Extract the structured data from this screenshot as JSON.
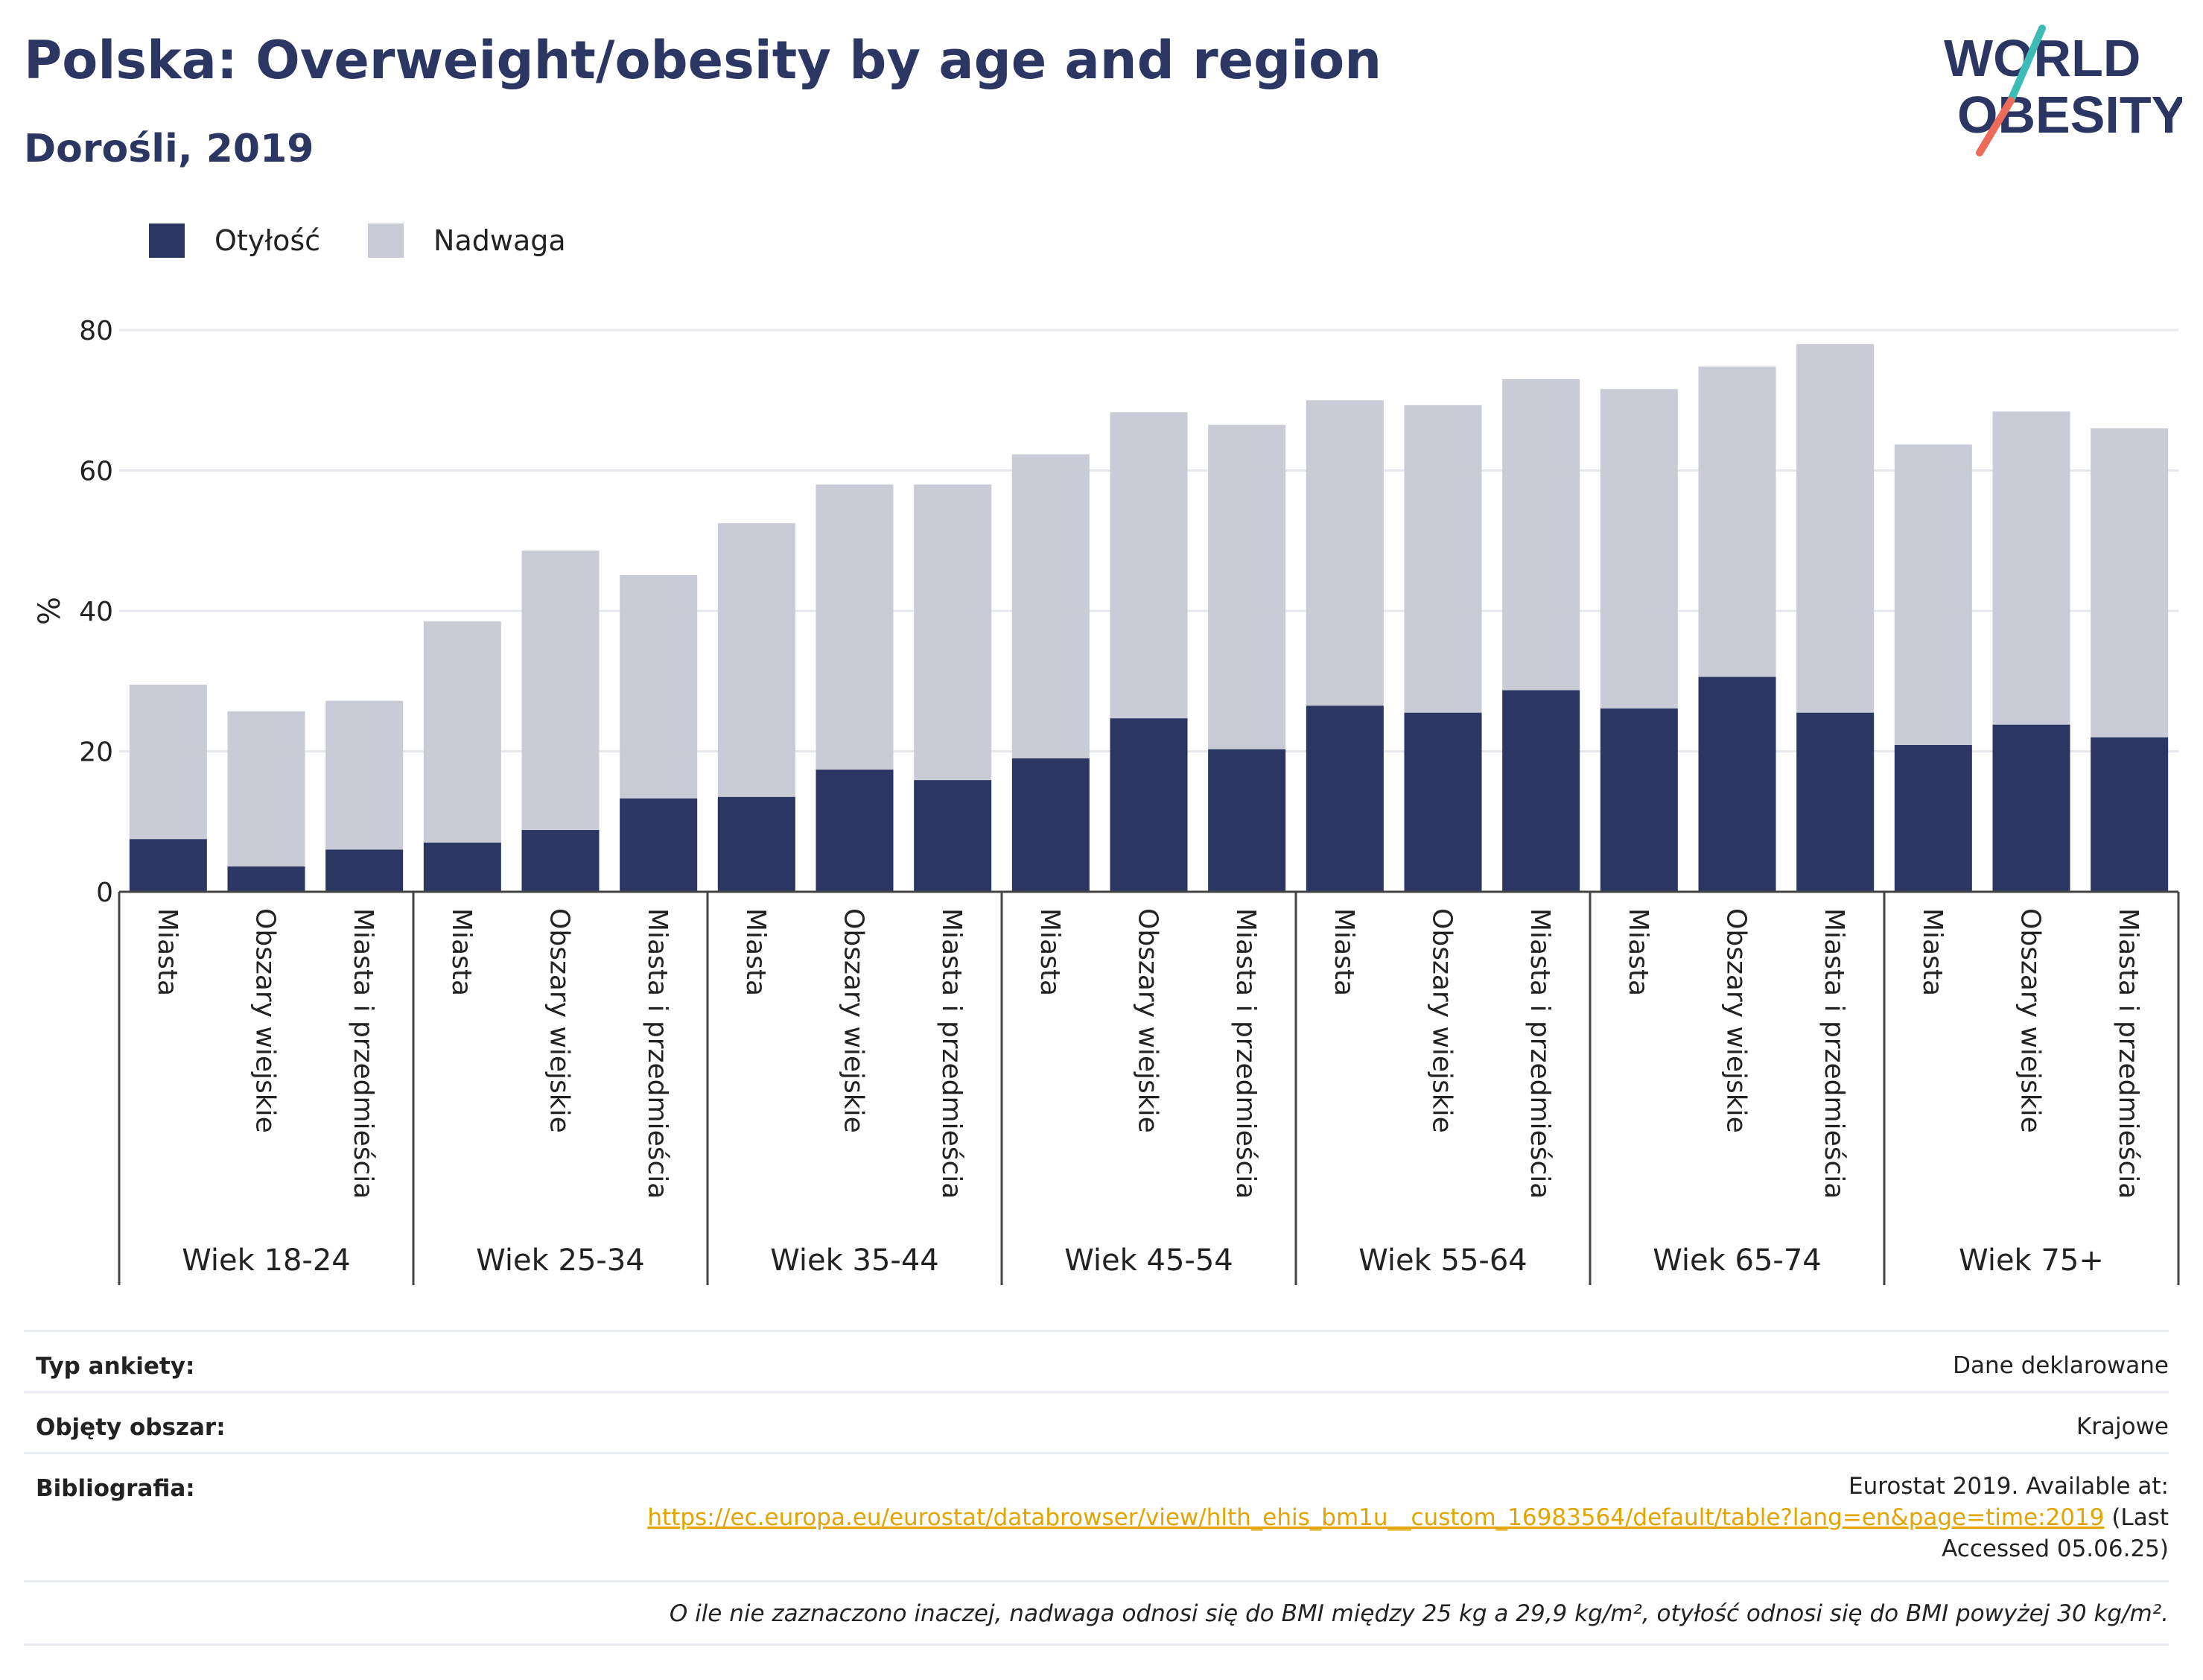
{
  "header": {
    "title": "Polska: Overweight/obesity by age and region",
    "subtitle": "Dorośli, 2019"
  },
  "logo": {
    "line1": "WORLD",
    "line2": "OBESITY"
  },
  "legend": [
    {
      "label": "Otyłość",
      "color": "#2b3663"
    },
    {
      "label": "Nadwaga",
      "color": "#c9cbd6"
    }
  ],
  "chart_data": {
    "type": "bar",
    "stacked": true,
    "ylabel": "%",
    "ylim": [
      0,
      80
    ],
    "yticks": [
      0,
      20,
      40,
      60,
      80
    ],
    "grid": true,
    "groups": [
      "Wiek 18-24",
      "Wiek 25-34",
      "Wiek 35-44",
      "Wiek 45-54",
      "Wiek 55-64",
      "Wiek 65-74",
      "Wiek 75+"
    ],
    "subcategories": [
      "Miasta",
      "Obszary wiejskie",
      "Miasta i przedmieścia"
    ],
    "series": [
      {
        "name": "Otyłość",
        "color": "#2b3663",
        "values": [
          7.5,
          3.6,
          6.0,
          7.0,
          8.8,
          13.3,
          13.5,
          17.4,
          15.9,
          19.0,
          24.7,
          20.3,
          26.5,
          25.5,
          28.7,
          26.1,
          30.6,
          25.5,
          20.9,
          23.8,
          22.0
        ]
      },
      {
        "name": "Nadwaga",
        "color": "#c9cbd6",
        "values": [
          22.0,
          22.1,
          21.2,
          31.5,
          39.8,
          31.8,
          39.0,
          40.6,
          42.1,
          43.3,
          43.6,
          46.2,
          43.5,
          43.8,
          44.3,
          45.5,
          44.2,
          52.5,
          42.8,
          44.6,
          44.0
        ]
      }
    ]
  },
  "info": {
    "survey_label": "Typ ankiety:",
    "survey_value": "Dane deklarowane",
    "area_label": "Objęty obszar:",
    "area_value": "Krajowe",
    "bib_label": "Bibliografia:",
    "bib_line1": "Eurostat 2019. Available at:",
    "bib_link": "https://ec.europa.eu/eurostat/databrowser/view/hlth_ehis_bm1u__custom_16983564/default/table?lang=en&page=time:2019",
    "bib_after_link": " (Last",
    "bib_line3": "Accessed 05.06.25)",
    "footnote": "O ile nie zaznaczono inaczej, nadwaga odnosi się do BMI między 25 kg a 29,9 kg/m², otyłość odnosi się do BMI powyżej 30 kg/m²."
  }
}
